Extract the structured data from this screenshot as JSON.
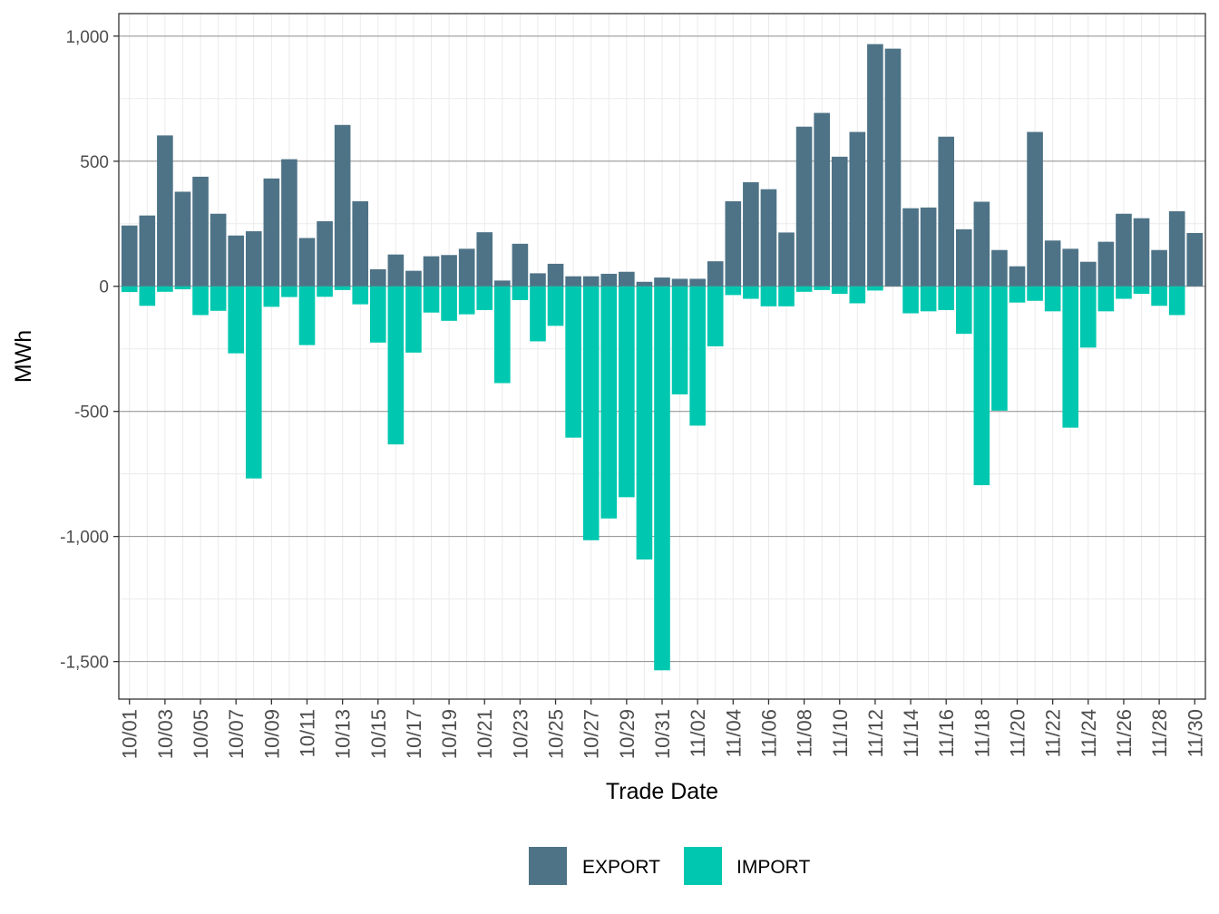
{
  "chart_data": {
    "type": "bar",
    "xlabel": "Trade Date",
    "ylabel": "MWh",
    "ylim": [
      -1650,
      1090
    ],
    "y_ticks": [
      1000,
      500,
      0,
      -500,
      -1000,
      -1500
    ],
    "y_tick_labels": [
      "1,000",
      "500",
      "0",
      "-500",
      "-1,000",
      "-1,500"
    ],
    "grid": true,
    "legend_position": "bottom",
    "categories": [
      "10/01",
      "10/02",
      "10/03",
      "10/04",
      "10/05",
      "10/06",
      "10/07",
      "10/08",
      "10/09",
      "10/10",
      "10/11",
      "10/12",
      "10/13",
      "10/14",
      "10/15",
      "10/16",
      "10/17",
      "10/18",
      "10/19",
      "10/20",
      "10/21",
      "10/22",
      "10/23",
      "10/24",
      "10/25",
      "10/26",
      "10/27",
      "10/28",
      "10/29",
      "10/30",
      "10/31",
      "11/01",
      "11/02",
      "11/03",
      "11/04",
      "11/05",
      "11/06",
      "11/07",
      "11/08",
      "11/09",
      "11/10",
      "11/11",
      "11/12",
      "11/13",
      "11/14",
      "11/15",
      "11/16",
      "11/17",
      "11/18",
      "11/19",
      "11/20",
      "11/21",
      "11/22",
      "11/23",
      "11/24",
      "11/25",
      "11/26",
      "11/27",
      "11/28",
      "11/29",
      "11/30"
    ],
    "x_tick_labels": [
      "10/01",
      "10/03",
      "10/05",
      "10/07",
      "10/09",
      "10/11",
      "10/13",
      "10/15",
      "10/17",
      "10/19",
      "10/21",
      "10/23",
      "10/25",
      "10/27",
      "10/29",
      "10/31",
      "11/02",
      "11/04",
      "11/06",
      "11/08",
      "11/10",
      "11/12",
      "11/14",
      "11/16",
      "11/18",
      "11/20",
      "11/22",
      "11/24",
      "11/26",
      "11/28",
      "11/30"
    ],
    "series": [
      {
        "name": "EXPORT",
        "color": "#4E7387",
        "values": [
          243,
          283,
          603,
          378,
          438,
          290,
          203,
          220,
          431,
          508,
          193,
          260,
          645,
          340,
          68,
          127,
          62,
          120,
          125,
          150,
          216,
          23,
          170,
          52,
          90,
          40,
          40,
          50,
          58,
          18,
          35,
          30,
          30,
          100,
          340,
          416,
          388,
          215,
          638,
          693,
          518,
          617,
          968,
          950,
          312,
          315,
          598,
          228,
          338,
          145,
          80,
          617,
          183,
          150,
          98,
          178,
          290,
          272,
          145,
          300,
          213
        ]
      },
      {
        "name": "IMPORT",
        "color": "#00C8B0",
        "values": [
          -23,
          -78,
          -22,
          -12,
          -115,
          -98,
          -268,
          -768,
          -82,
          -43,
          -235,
          -42,
          -15,
          -72,
          -225,
          -632,
          -265,
          -105,
          -138,
          -112,
          -95,
          -387,
          -55,
          -220,
          -158,
          -605,
          -1015,
          -928,
          -843,
          -1092,
          -1535,
          -432,
          -557,
          -240,
          -35,
          -50,
          -80,
          -80,
          -22,
          -15,
          -30,
          -68,
          -17,
          0,
          -108,
          -100,
          -95,
          -190,
          -795,
          -497,
          -65,
          -58,
          -100,
          -565,
          -245,
          -100,
          -50,
          -30,
          -78,
          -115,
          0
        ]
      }
    ]
  }
}
